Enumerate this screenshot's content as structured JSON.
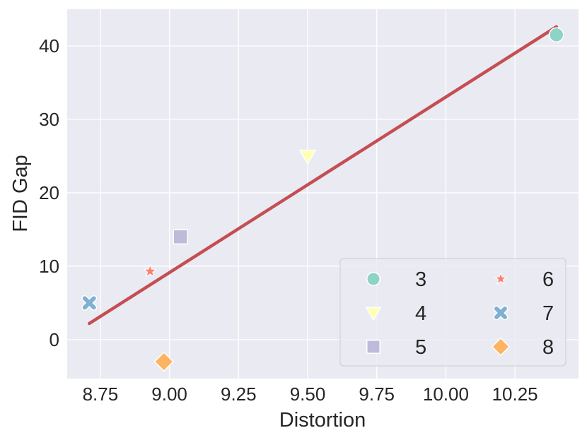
{
  "chart_data": {
    "type": "scatter",
    "xlabel": "Distortion",
    "ylabel": "FID Gap",
    "xlim": [
      8.63,
      10.48
    ],
    "ylim": [
      -5.3,
      45
    ],
    "xticks": [
      8.75,
      9.0,
      9.25,
      9.5,
      9.75,
      10.0,
      10.25
    ],
    "xtick_labels": [
      "8.75",
      "9.00",
      "9.25",
      "9.50",
      "9.75",
      "10.00",
      "10.25"
    ],
    "yticks": [
      0,
      10,
      20,
      30,
      40
    ],
    "ytick_labels": [
      "0",
      "10",
      "20",
      "30",
      "40"
    ],
    "grid": true,
    "legend_position": "lower-right",
    "background": "#eaeaf2",
    "series": [
      {
        "name": "3",
        "marker": "circle",
        "color": "#8dd3c7",
        "x": 10.4,
        "y": 41.5
      },
      {
        "name": "4",
        "marker": "triangle-down",
        "color": "#ffffb3",
        "x": 9.5,
        "y": 25
      },
      {
        "name": "5",
        "marker": "square",
        "color": "#bebada",
        "x": 9.04,
        "y": 14
      },
      {
        "name": "6",
        "marker": "star",
        "color": "#fb8072",
        "x": 8.93,
        "y": 9.3
      },
      {
        "name": "7",
        "marker": "x",
        "color": "#80b1d3",
        "x": 8.71,
        "y": 5
      },
      {
        "name": "8",
        "marker": "diamond",
        "color": "#fdb462",
        "x": 8.98,
        "y": -3
      }
    ],
    "fit_line": {
      "color": "#c44e52",
      "x": [
        8.71,
        10.4
      ],
      "y": [
        2.2,
        42.6
      ]
    }
  }
}
